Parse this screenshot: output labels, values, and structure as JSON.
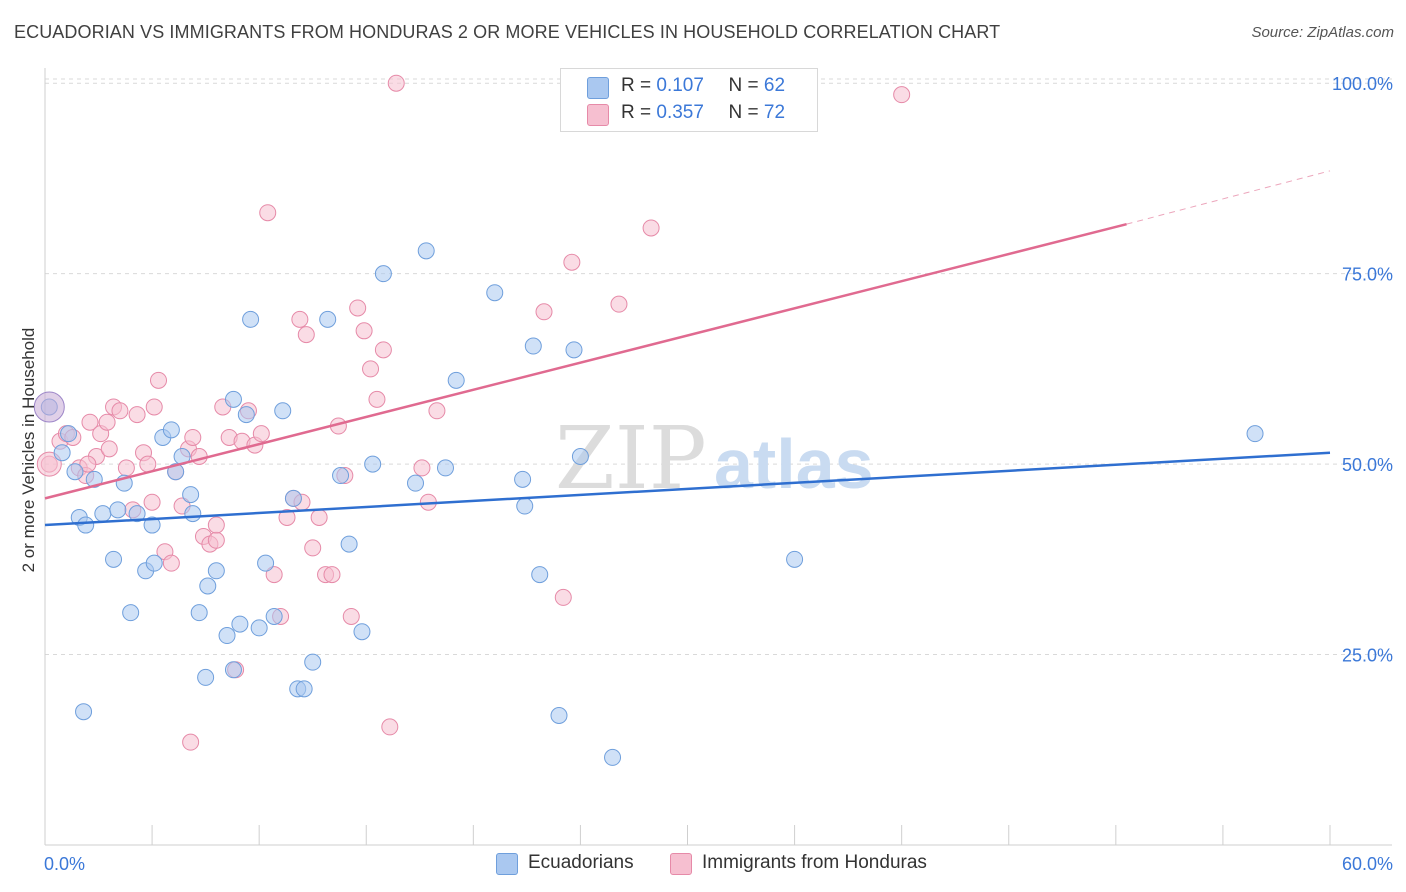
{
  "title": "ECUADORIAN VS IMMIGRANTS FROM HONDURAS 2 OR MORE VEHICLES IN HOUSEHOLD CORRELATION CHART",
  "source": "Source: ZipAtlas.com",
  "watermark": {
    "zip": "ZIP",
    "atlas": "atlas"
  },
  "colors": {
    "blue_fill": "#aac8f0",
    "blue_stroke": "#6f9fdc",
    "blue_line": "#2f6fd0",
    "pink_fill": "#f6bfd0",
    "pink_stroke": "#e68aa8",
    "pink_line": "#e06a90",
    "axis_label": "#3b78d8",
    "grid": "#d9d9d9"
  },
  "legend_top": {
    "rows": [
      {
        "r_label": "R =",
        "r_value": "0.107",
        "n_label": "N =",
        "n_value": "62"
      },
      {
        "r_label": "R =",
        "r_value": "0.357",
        "n_label": "N =",
        "n_value": "72"
      }
    ]
  },
  "legend_bottom": {
    "items": [
      "Ecuadorians",
      "Immigrants from Honduras"
    ]
  },
  "chart_data": {
    "type": "scatter",
    "title": "ECUADORIAN VS IMMIGRANTS FROM HONDURAS 2 OR MORE VEHICLES IN HOUSEHOLD CORRELATION CHART",
    "xlabel": "",
    "ylabel": "2 or more Vehicles in Household",
    "xlim": [
      0,
      60
    ],
    "ylim": [
      0,
      102
    ],
    "x_tick_labels": [
      "0.0%",
      "60.0%"
    ],
    "y_ticks": [
      25,
      50,
      75,
      100
    ],
    "y_tick_labels": [
      "25.0%",
      "50.0%",
      "75.0%",
      "100.0%"
    ],
    "grid": true,
    "series": [
      {
        "name": "Ecuadorians",
        "r": 0.107,
        "n": 62,
        "trend": {
          "x": [
            0,
            60
          ],
          "y": [
            42.0,
            51.5
          ]
        },
        "points": [
          [
            0.2,
            57.5
          ],
          [
            0.8,
            51.5
          ],
          [
            1.1,
            54.0
          ],
          [
            1.4,
            49.0
          ],
          [
            1.6,
            43.0
          ],
          [
            1.9,
            42.0
          ],
          [
            2.3,
            48.0
          ],
          [
            2.7,
            43.5
          ],
          [
            3.2,
            37.5
          ],
          [
            3.4,
            44.0
          ],
          [
            3.7,
            47.5
          ],
          [
            4.0,
            30.5
          ],
          [
            4.3,
            43.5
          ],
          [
            4.7,
            36.0
          ],
          [
            5.0,
            42.0
          ],
          [
            5.1,
            37.0
          ],
          [
            5.5,
            53.5
          ],
          [
            5.9,
            54.5
          ],
          [
            6.1,
            49.0
          ],
          [
            6.4,
            51.0
          ],
          [
            6.8,
            46.0
          ],
          [
            6.9,
            43.5
          ],
          [
            7.2,
            30.5
          ],
          [
            7.6,
            34.0
          ],
          [
            8.0,
            36.0
          ],
          [
            8.5,
            27.5
          ],
          [
            8.8,
            23.0
          ],
          [
            9.1,
            29.0
          ],
          [
            9.4,
            56.5
          ],
          [
            9.6,
            69.0
          ],
          [
            10.0,
            28.5
          ],
          [
            10.3,
            37.0
          ],
          [
            10.7,
            30.0
          ],
          [
            11.1,
            57.0
          ],
          [
            11.6,
            45.5
          ],
          [
            11.8,
            20.5
          ],
          [
            12.1,
            20.5
          ],
          [
            12.5,
            24.0
          ],
          [
            13.2,
            69.0
          ],
          [
            13.8,
            48.5
          ],
          [
            14.2,
            39.5
          ],
          [
            14.8,
            28.0
          ],
          [
            15.3,
            50.0
          ],
          [
            15.8,
            75.0
          ],
          [
            17.3,
            47.5
          ],
          [
            17.8,
            78.0
          ],
          [
            18.7,
            49.5
          ],
          [
            19.2,
            61.0
          ],
          [
            21.0,
            72.5
          ],
          [
            22.3,
            48.0
          ],
          [
            22.4,
            44.5
          ],
          [
            22.8,
            65.5
          ],
          [
            23.1,
            35.5
          ],
          [
            24.0,
            17.0
          ],
          [
            24.7,
            65.0
          ],
          [
            25.0,
            51.0
          ],
          [
            26.5,
            11.5
          ],
          [
            35.0,
            37.5
          ],
          [
            1.8,
            17.5
          ],
          [
            7.5,
            22.0
          ],
          [
            56.5,
            54.0
          ],
          [
            8.8,
            58.5
          ]
        ]
      },
      {
        "name": "Immigrants from Honduras",
        "r": 0.357,
        "n": 72,
        "trend": {
          "x": [
            0,
            50.5
          ],
          "y": [
            45.5,
            81.5
          ]
        },
        "trend_extension": {
          "x": [
            50.5,
            60
          ],
          "y": [
            81.5,
            88.5
          ]
        },
        "points": [
          [
            0.2,
            50.0
          ],
          [
            0.7,
            53.0
          ],
          [
            1.0,
            54.0
          ],
          [
            1.3,
            53.5
          ],
          [
            1.6,
            49.5
          ],
          [
            1.9,
            48.5
          ],
          [
            2.1,
            55.5
          ],
          [
            2.4,
            51.0
          ],
          [
            2.6,
            54.0
          ],
          [
            2.9,
            55.5
          ],
          [
            3.2,
            57.5
          ],
          [
            3.5,
            57.0
          ],
          [
            3.8,
            49.5
          ],
          [
            4.1,
            44.0
          ],
          [
            4.3,
            56.5
          ],
          [
            4.6,
            51.5
          ],
          [
            4.8,
            50.0
          ],
          [
            5.1,
            57.5
          ],
          [
            5.3,
            61.0
          ],
          [
            5.6,
            38.5
          ],
          [
            5.9,
            37.0
          ],
          [
            6.1,
            49.0
          ],
          [
            6.4,
            44.5
          ],
          [
            6.7,
            52.0
          ],
          [
            6.9,
            53.5
          ],
          [
            7.2,
            51.0
          ],
          [
            7.4,
            40.5
          ],
          [
            7.7,
            39.5
          ],
          [
            8.0,
            40.0
          ],
          [
            8.3,
            57.5
          ],
          [
            8.6,
            53.5
          ],
          [
            8.9,
            23.0
          ],
          [
            9.2,
            53.0
          ],
          [
            9.5,
            57.0
          ],
          [
            9.8,
            52.5
          ],
          [
            10.1,
            54.0
          ],
          [
            10.4,
            83.0
          ],
          [
            10.7,
            35.5
          ],
          [
            11.0,
            30.0
          ],
          [
            11.3,
            43.0
          ],
          [
            11.6,
            45.5
          ],
          [
            11.9,
            69.0
          ],
          [
            12.2,
            67.0
          ],
          [
            12.5,
            39.0
          ],
          [
            12.8,
            43.0
          ],
          [
            13.1,
            35.5
          ],
          [
            13.4,
            35.5
          ],
          [
            13.7,
            55.0
          ],
          [
            14.0,
            48.5
          ],
          [
            14.3,
            30.0
          ],
          [
            14.6,
            70.5
          ],
          [
            14.9,
            67.5
          ],
          [
            15.2,
            62.5
          ],
          [
            15.5,
            58.5
          ],
          [
            15.8,
            65.0
          ],
          [
            16.1,
            15.5
          ],
          [
            16.4,
            100.0
          ],
          [
            17.6,
            49.5
          ],
          [
            17.9,
            45.0
          ],
          [
            18.3,
            57.0
          ],
          [
            23.3,
            70.0
          ],
          [
            24.2,
            32.5
          ],
          [
            24.6,
            76.5
          ],
          [
            26.8,
            71.0
          ],
          [
            28.3,
            81.0
          ],
          [
            40.0,
            98.5
          ],
          [
            6.8,
            13.5
          ],
          [
            2.0,
            50.0
          ],
          [
            3.0,
            52.0
          ],
          [
            5.0,
            45.0
          ],
          [
            8.0,
            42.0
          ],
          [
            12.0,
            45.0
          ]
        ]
      }
    ]
  },
  "axis": {
    "ylabel": "2 or more Vehicles in Household"
  }
}
